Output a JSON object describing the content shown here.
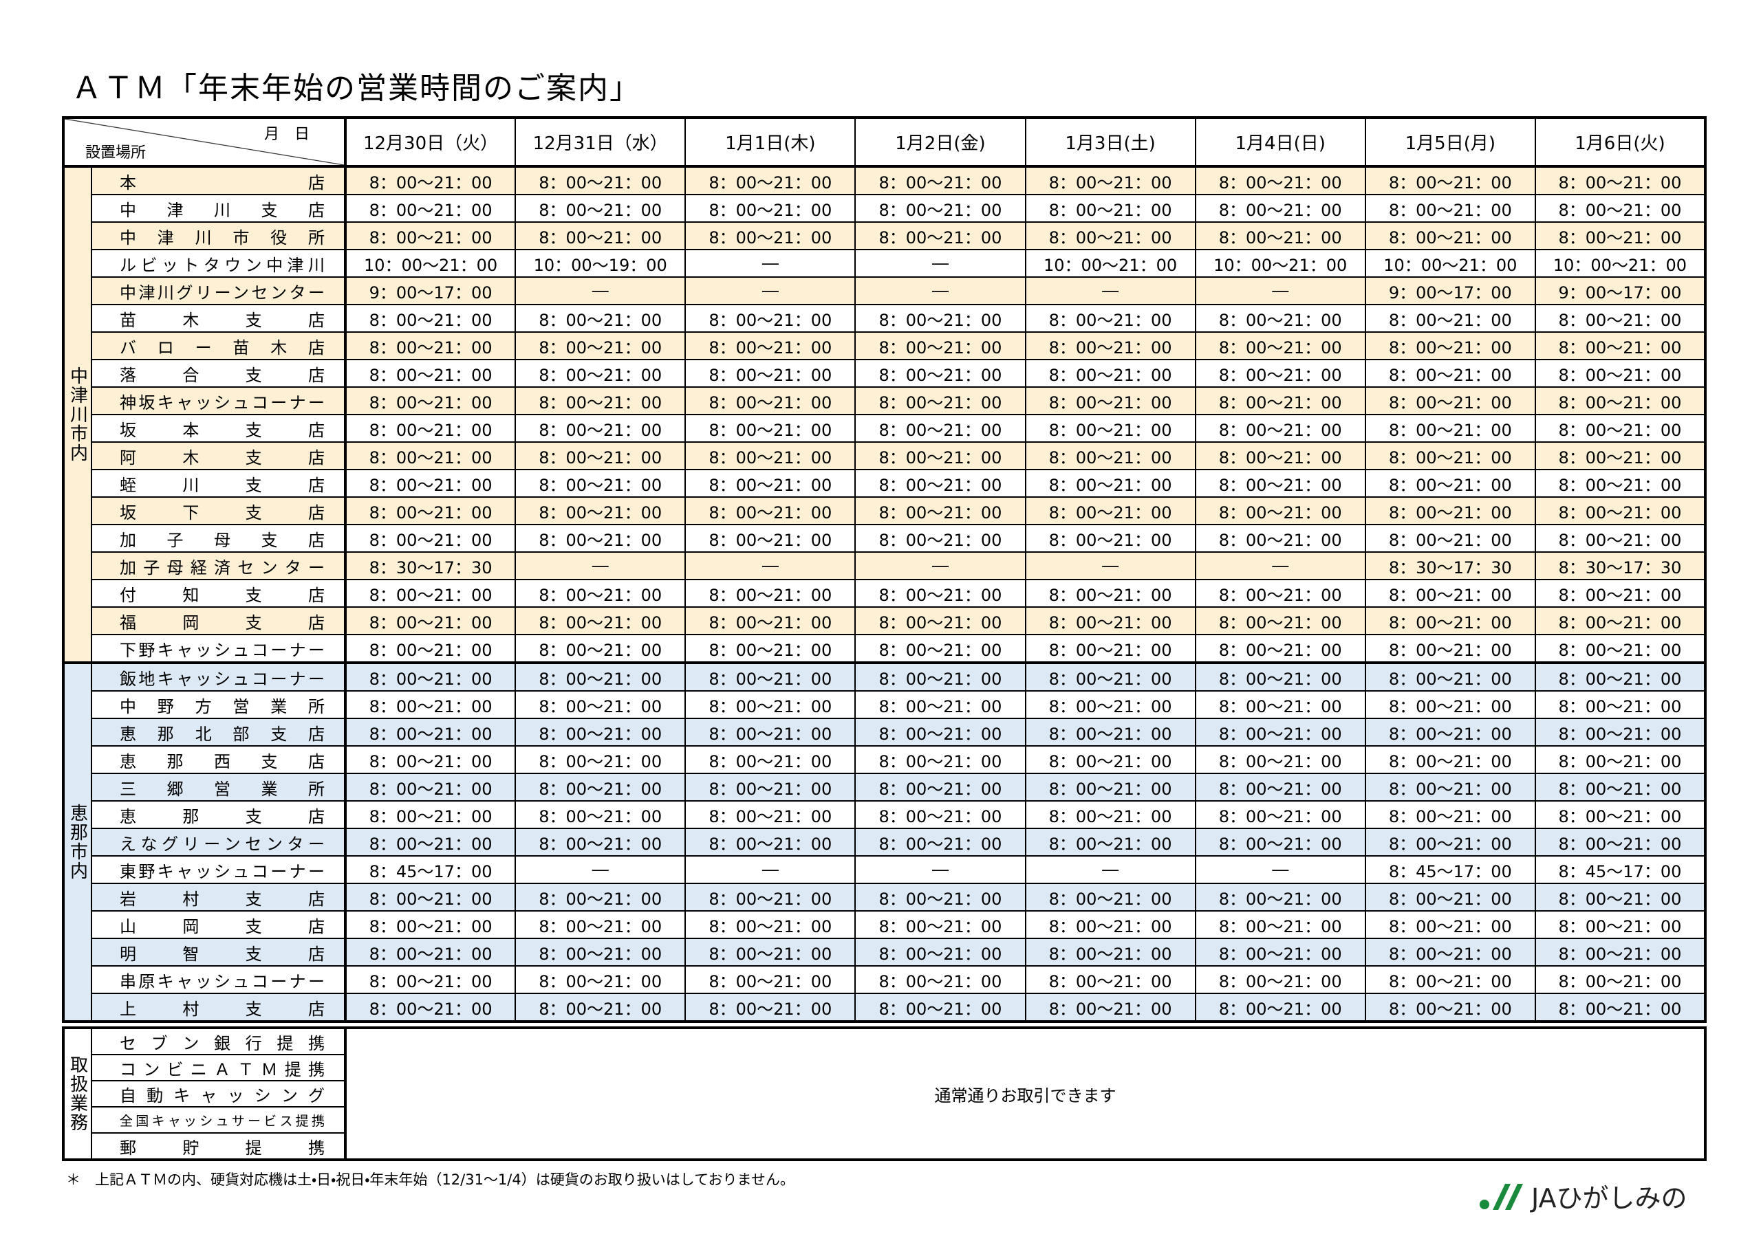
{
  "header": {
    "title": "ＡＴＭ「年末年始の営業時間のご案内」"
  },
  "table": {
    "corner_month": "月　日",
    "corner_place": "設置場所",
    "columns": [
      "12月30日（火）",
      "12月31日（水）",
      "1月1日(木)",
      "1月2日(金)",
      "1月3日(土)",
      "1月4日(日)",
      "1月5日(月)",
      "1月6日(火)"
    ],
    "groups": [
      {
        "region": "中津川市内",
        "rows": [
          {
            "name": "本店",
            "hours": [
              "8：00～21：00",
              "8：00～21：00",
              "8：00～21：00",
              "8：00～21：00",
              "8：00～21：00",
              "8：00～21：00",
              "8：00～21：00",
              "8：00～21：00"
            ]
          },
          {
            "name": "中津川支店",
            "hours": [
              "8：00～21：00",
              "8：00～21：00",
              "8：00～21：00",
              "8：00～21：00",
              "8：00～21：00",
              "8：00～21：00",
              "8：00～21：00",
              "8：00～21：00"
            ]
          },
          {
            "name": "中津川市役所",
            "hours": [
              "8：00～21：00",
              "8：00～21：00",
              "8：00～21：00",
              "8：00～21：00",
              "8：00～21：00",
              "8：00～21：00",
              "8：00～21：00",
              "8：00～21：00"
            ]
          },
          {
            "name": "ルビットタウン中津川",
            "hours": [
              "10：00～21：00",
              "10：00～19：00",
              "―",
              "―",
              "10：00～21：00",
              "10：00～21：00",
              "10：00～21：00",
              "10：00～21：00"
            ]
          },
          {
            "name": "中津川グリーンセンター",
            "hours": [
              "9：00～17：00",
              "―",
              "―",
              "―",
              "―",
              "―",
              "9：00～17：00",
              "9：00～17：00"
            ]
          },
          {
            "name": "苗木支店",
            "hours": [
              "8：00～21：00",
              "8：00～21：00",
              "8：00～21：00",
              "8：00～21：00",
              "8：00～21：00",
              "8：00～21：00",
              "8：00～21：00",
              "8：00～21：00"
            ]
          },
          {
            "name": "バロー苗木店",
            "hours": [
              "8：00～21：00",
              "8：00～21：00",
              "8：00～21：00",
              "8：00～21：00",
              "8：00～21：00",
              "8：00～21：00",
              "8：00～21：00",
              "8：00～21：00"
            ]
          },
          {
            "name": "落合支店",
            "hours": [
              "8：00～21：00",
              "8：00～21：00",
              "8：00～21：00",
              "8：00～21：00",
              "8：00～21：00",
              "8：00～21：00",
              "8：00～21：00",
              "8：00～21：00"
            ]
          },
          {
            "name": "神坂キャッシュコーナー",
            "hours": [
              "8：00～21：00",
              "8：00～21：00",
              "8：00～21：00",
              "8：00～21：00",
              "8：00～21：00",
              "8：00～21：00",
              "8：00～21：00",
              "8：00～21：00"
            ]
          },
          {
            "name": "坂本支店",
            "hours": [
              "8：00～21：00",
              "8：00～21：00",
              "8：00～21：00",
              "8：00～21：00",
              "8：00～21：00",
              "8：00～21：00",
              "8：00～21：00",
              "8：00～21：00"
            ]
          },
          {
            "name": "阿木支店",
            "hours": [
              "8：00～21：00",
              "8：00～21：00",
              "8：00～21：00",
              "8：00～21：00",
              "8：00～21：00",
              "8：00～21：00",
              "8：00～21：00",
              "8：00～21：00"
            ]
          },
          {
            "name": "蛭川支店",
            "hours": [
              "8：00～21：00",
              "8：00～21：00",
              "8：00～21：00",
              "8：00～21：00",
              "8：00～21：00",
              "8：00～21：00",
              "8：00～21：00",
              "8：00～21：00"
            ]
          },
          {
            "name": "坂下支店",
            "hours": [
              "8：00～21：00",
              "8：00～21：00",
              "8：00～21：00",
              "8：00～21：00",
              "8：00～21：00",
              "8：00～21：00",
              "8：00～21：00",
              "8：00～21：00"
            ]
          },
          {
            "name": "加子母支店",
            "hours": [
              "8：00～21：00",
              "8：00～21：00",
              "8：00～21：00",
              "8：00～21：00",
              "8：00～21：00",
              "8：00～21：00",
              "8：00～21：00",
              "8：00～21：00"
            ]
          },
          {
            "name": "加子母経済センター",
            "hours": [
              "8：30～17：30",
              "―",
              "―",
              "―",
              "―",
              "―",
              "8：30～17：30",
              "8：30～17：30"
            ]
          },
          {
            "name": "付知支店",
            "hours": [
              "8：00～21：00",
              "8：00～21：00",
              "8：00～21：00",
              "8：00～21：00",
              "8：00～21：00",
              "8：00～21：00",
              "8：00～21：00",
              "8：00～21：00"
            ]
          },
          {
            "name": "福岡支店",
            "hours": [
              "8：00～21：00",
              "8：00～21：00",
              "8：00～21：00",
              "8：00～21：00",
              "8：00～21：00",
              "8：00～21：00",
              "8：00～21：00",
              "8：00～21：00"
            ]
          },
          {
            "name": "下野キャッシュコーナー",
            "hours": [
              "8：00～21：00",
              "8：00～21：00",
              "8：00～21：00",
              "8：00～21：00",
              "8：00～21：00",
              "8：00～21：00",
              "8：00～21：00",
              "8：00～21：00"
            ]
          }
        ]
      },
      {
        "region": "恵那市内",
        "rows": [
          {
            "name": "飯地キャッシュコーナー",
            "hours": [
              "8：00～21：00",
              "8：00～21：00",
              "8：00～21：00",
              "8：00～21：00",
              "8：00～21：00",
              "8：00～21：00",
              "8：00～21：00",
              "8：00～21：00"
            ]
          },
          {
            "name": "中野方営業所",
            "hours": [
              "8：00～21：00",
              "8：00～21：00",
              "8：00～21：00",
              "8：00～21：00",
              "8：00～21：00",
              "8：00～21：00",
              "8：00～21：00",
              "8：00～21：00"
            ]
          },
          {
            "name": "恵那北部支店",
            "hours": [
              "8：00～21：00",
              "8：00～21：00",
              "8：00～21：00",
              "8：00～21：00",
              "8：00～21：00",
              "8：00～21：00",
              "8：00～21：00",
              "8：00～21：00"
            ]
          },
          {
            "name": "恵那西支店",
            "hours": [
              "8：00～21：00",
              "8：00～21：00",
              "8：00～21：00",
              "8：00～21：00",
              "8：00～21：00",
              "8：00～21：00",
              "8：00～21：00",
              "8：00～21：00"
            ]
          },
          {
            "name": "三郷営業所",
            "hours": [
              "8：00～21：00",
              "8：00～21：00",
              "8：00～21：00",
              "8：00～21：00",
              "8：00～21：00",
              "8：00～21：00",
              "8：00～21：00",
              "8：00～21：00"
            ]
          },
          {
            "name": "恵那支店",
            "hours": [
              "8：00～21：00",
              "8：00～21：00",
              "8：00～21：00",
              "8：00～21：00",
              "8：00～21：00",
              "8：00～21：00",
              "8：00～21：00",
              "8：00～21：00"
            ]
          },
          {
            "name": "えなグリーンセンター",
            "hours": [
              "8：00～21：00",
              "8：00～21：00",
              "8：00～21：00",
              "8：00～21：00",
              "8：00～21：00",
              "8：00～21：00",
              "8：00～21：00",
              "8：00～21：00"
            ]
          },
          {
            "name": "東野キャッシュコーナー",
            "hours": [
              "8：45～17：00",
              "―",
              "―",
              "―",
              "―",
              "―",
              "8：45～17：00",
              "8：45～17：00"
            ]
          },
          {
            "name": "岩村支店",
            "hours": [
              "8：00～21：00",
              "8：00～21：00",
              "8：00～21：00",
              "8：00～21：00",
              "8：00～21：00",
              "8：00～21：00",
              "8：00～21：00",
              "8：00～21：00"
            ]
          },
          {
            "name": "山岡支店",
            "hours": [
              "8：00～21：00",
              "8：00～21：00",
              "8：00～21：00",
              "8：00～21：00",
              "8：00～21：00",
              "8：00～21：00",
              "8：00～21：00",
              "8：00～21：00"
            ]
          },
          {
            "name": "明智支店",
            "hours": [
              "8：00～21：00",
              "8：00～21：00",
              "8：00～21：00",
              "8：00～21：00",
              "8：00～21：00",
              "8：00～21：00",
              "8：00～21：00",
              "8：00～21：00"
            ]
          },
          {
            "name": "串原キャッシュコーナー",
            "hours": [
              "8：00～21：00",
              "8：00～21：00",
              "8：00～21：00",
              "8：00～21：00",
              "8：00～21：00",
              "8：00～21：00",
              "8：00～21：00",
              "8：00～21：00"
            ]
          },
          {
            "name": "上村支店",
            "hours": [
              "8：00～21：00",
              "8：00～21：00",
              "8：00～21：00",
              "8：00～21：00",
              "8：00～21：00",
              "8：00～21：00",
              "8：00～21：00",
              "8：00～21：00"
            ]
          }
        ]
      }
    ]
  },
  "services": {
    "region": "取扱業務",
    "items": [
      "セブン銀行提携",
      "コンビニＡＴＭ提携",
      "自動キャッシング",
      "全国キャッシュサービス提携",
      "郵貯提携"
    ],
    "note": "通常通りお取引できます"
  },
  "footnote": "＊　上記ＡＴＭの内、硬貨対応機は土・日・祝日・年末年始（12/31～1/4）は硬貨のお取り扱いはしておりません。",
  "logo": {
    "text": "JAひがしみの"
  }
}
